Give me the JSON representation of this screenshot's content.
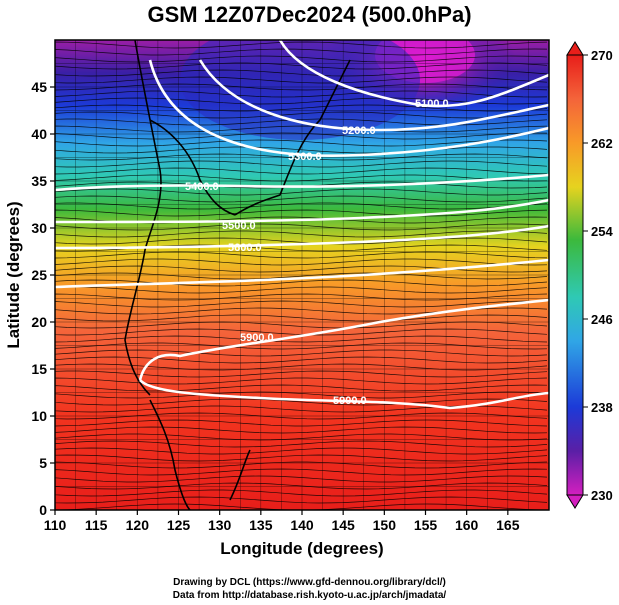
{
  "title": "GSM 12Z07Dec2024 (500.0hPa)",
  "x_axis": {
    "label": "Longitude (degrees)",
    "range": [
      110,
      170
    ],
    "ticks": [
      110,
      115,
      120,
      125,
      130,
      135,
      140,
      145,
      150,
      155,
      160,
      165
    ]
  },
  "y_axis": {
    "label": "Latitude  (degrees)",
    "range": [
      0,
      50
    ],
    "ticks": [
      0,
      5,
      10,
      15,
      20,
      25,
      30,
      35,
      40,
      45
    ]
  },
  "colorbar": {
    "min": 230,
    "max": 270,
    "ticks": [
      230,
      238,
      246,
      254,
      262,
      270
    ]
  },
  "contours": [
    {
      "label": "5100.0"
    },
    {
      "label": "5200.0"
    },
    {
      "label": "5300.0"
    },
    {
      "label": "5400.0"
    },
    {
      "label": "5500.0"
    },
    {
      "label": "5600.0"
    },
    {
      "label": "5900.0"
    },
    {
      "label": "5900.0"
    }
  ],
  "credit_line1": "Drawing by DCL (https://www.gfd-dennou.org/library/dcl/)",
  "credit_line2": "Data from http://database.rish.kyoto-u.ac.jp/arch/jmadata/"
}
